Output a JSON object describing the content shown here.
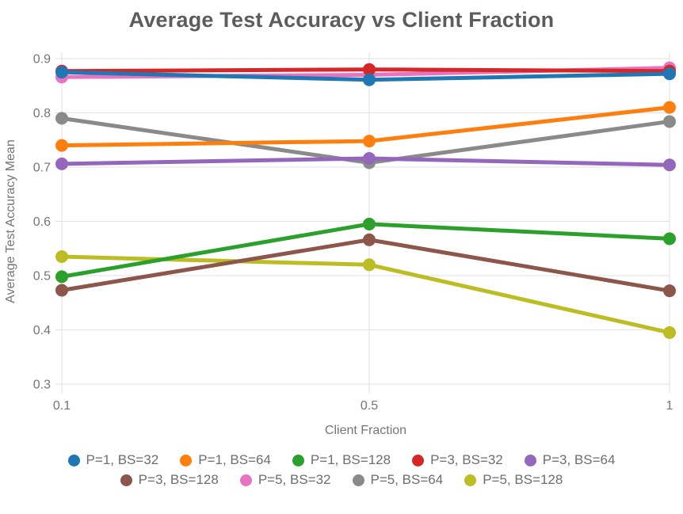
{
  "title": "Average Test Accuracy vs Client Fraction",
  "chart_data": {
    "type": "line",
    "title": "Average Test Accuracy vs Client Fraction",
    "xlabel": "Client Fraction",
    "ylabel": "Average Test Accuracy Mean",
    "x": [
      0.1,
      0.5,
      1
    ],
    "x_tick_labels": [
      "0.1",
      "0.5",
      "1"
    ],
    "y_tick_labels": [
      "0.9",
      "0.8",
      "0.7",
      "0.6",
      "0.5",
      "0.4",
      "0.3"
    ],
    "ylim": [
      0.3,
      0.9
    ],
    "grid": true,
    "legend_position": "bottom",
    "marker": "circle",
    "series": [
      {
        "name": "P=1, BS=32",
        "color": "#1f77b4",
        "values": [
          0.875,
          0.861,
          0.872
        ]
      },
      {
        "name": "P=1, BS=64",
        "color": "#ff7f0e",
        "values": [
          0.74,
          0.748,
          0.81
        ]
      },
      {
        "name": "P=1, BS=128",
        "color": "#2ca02c",
        "values": [
          0.498,
          0.595,
          0.568
        ]
      },
      {
        "name": "P=3, BS=32",
        "color": "#d62728",
        "values": [
          0.877,
          0.88,
          0.877
        ]
      },
      {
        "name": "P=3, BS=64",
        "color": "#9467bd",
        "values": [
          0.706,
          0.716,
          0.704
        ]
      },
      {
        "name": "P=3, BS=128",
        "color": "#8c564b",
        "values": [
          0.473,
          0.566,
          0.472
        ]
      },
      {
        "name": "P=5, BS=32",
        "color": "#e873c1",
        "values": [
          0.866,
          0.87,
          0.883
        ]
      },
      {
        "name": "P=5, BS=64",
        "color": "#8a8a8a",
        "values": [
          0.79,
          0.708,
          0.784
        ]
      },
      {
        "name": "P=5, BS=128",
        "color": "#bcbd22",
        "values": [
          0.535,
          0.52,
          0.395
        ]
      }
    ]
  }
}
